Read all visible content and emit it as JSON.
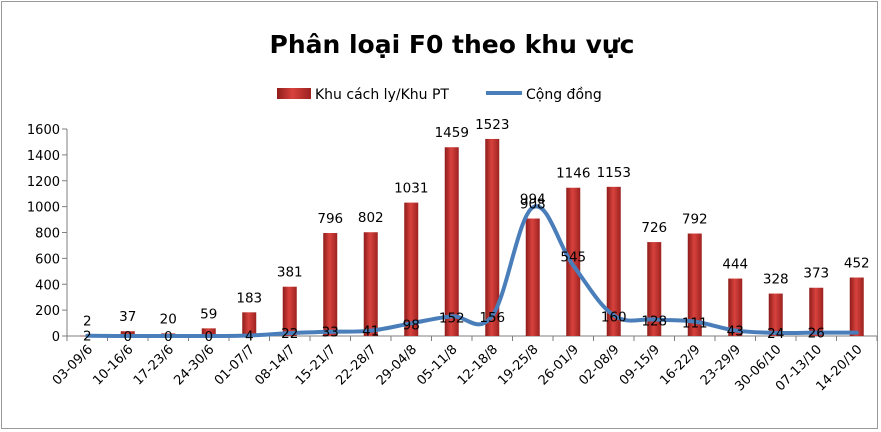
{
  "chart_data": {
    "type": "bar",
    "title": "Phân loại F0 theo khu vực",
    "categories": [
      "03-09/6",
      "10-16/6",
      "17-23/6",
      "24-30/6",
      "01-07/7",
      "08-14/7",
      "15-21/7",
      "22-28/7",
      "29-04/8",
      "05-11/8",
      "12-18/8",
      "19-25/8",
      "26-01/9",
      "02-08/9",
      "09-15/9",
      "16-22/9",
      "23-29/9",
      "30-06/10",
      "07-13/10",
      "14-20/10"
    ],
    "series": [
      {
        "name": "Khu cách ly/Khu PT",
        "type": "bar",
        "color": "#c0302c",
        "values": [
          2,
          37,
          20,
          59,
          183,
          381,
          796,
          802,
          1031,
          1459,
          1523,
          908,
          1146,
          1153,
          726,
          792,
          444,
          328,
          373,
          452
        ],
        "value_labels": [
          "2",
          "37",
          "20",
          "59",
          "183",
          "381",
          "796",
          "802",
          "1031",
          "1459",
          "1523",
          "908",
          "1146",
          "1153",
          "726",
          "792",
          "444",
          "328",
          "373",
          "452"
        ]
      },
      {
        "name": "Cộng đồng",
        "type": "line",
        "color": "#4a7ebb",
        "values": [
          2,
          0,
          0,
          0,
          4,
          22,
          33,
          41,
          98,
          152,
          156,
          994,
          545,
          160,
          128,
          111,
          43,
          24,
          26,
          26
        ],
        "value_labels": [
          "2",
          "0",
          "0",
          "0",
          "4",
          "22",
          "33",
          "41",
          "98",
          "152",
          "156",
          "994",
          "545",
          "160",
          "128",
          "111",
          "43",
          "24",
          "26",
          ""
        ]
      }
    ],
    "ylim": [
      0,
      1600
    ],
    "yticks": [
      0,
      200,
      400,
      600,
      800,
      1000,
      1200,
      1400,
      1600
    ],
    "grid": false,
    "legend_position": "top"
  }
}
